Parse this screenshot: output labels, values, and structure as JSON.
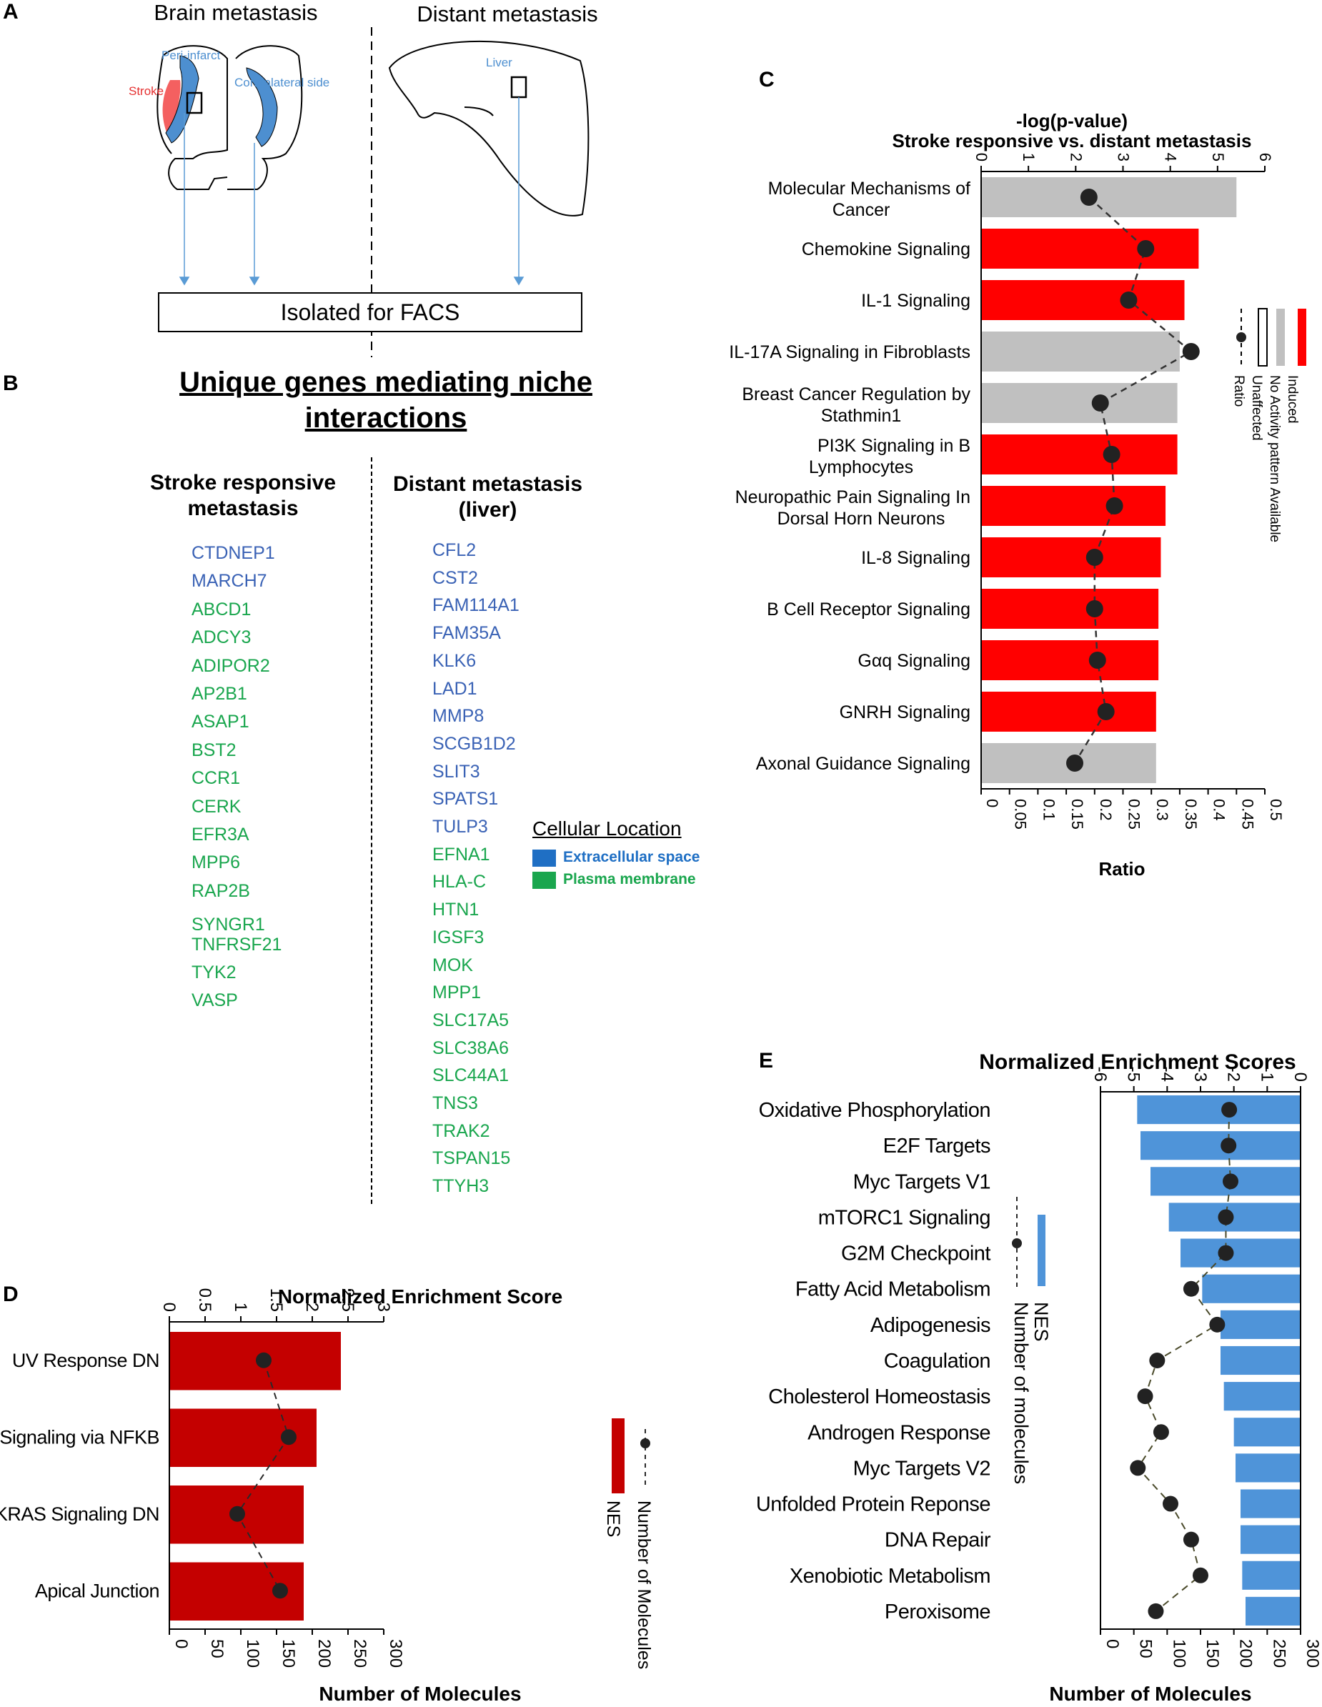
{
  "panels": {
    "A": "A",
    "B": "B",
    "C": "C",
    "D": "D",
    "E": "E"
  },
  "colors": {
    "extracellular": "#3a62b5",
    "plasma": "#1aa64e",
    "induced": "#ff0000",
    "noActivity": "#c0c0c0",
    "nesBlue": "#4f94d9",
    "nesRed": "#c40000",
    "region": "#4d8fd0",
    "stroke": "#f46060"
  },
  "panelA": {
    "brain_title": "Brain metastasis",
    "distant_title": "Distant metastasis",
    "peri_infarct": "Peri-infarct",
    "stroke": "Stroke",
    "contralateral": "Contralateral side",
    "liver": "Liver",
    "facs": "Isolated for FACS"
  },
  "panelB": {
    "title_line1": "Unique genes mediating niche",
    "title_line2": "interactions",
    "col1_line1": "Stroke responsive",
    "col1_line2": "metastasis",
    "col2_line1": "Distant metastasis",
    "col2_line2": "(liver)",
    "legend_title": "Cellular  Location",
    "legend_extracellular": "Extracellular space",
    "legend_plasma": "Plasma membrane",
    "stroke_genes": [
      {
        "name": "CTDNEP1",
        "loc": "extracellular"
      },
      {
        "name": "MARCH7",
        "loc": "extracellular"
      },
      {
        "name": "ABCD1",
        "loc": "plasma"
      },
      {
        "name": "ADCY3",
        "loc": "plasma"
      },
      {
        "name": "ADIPOR2",
        "loc": "plasma"
      },
      {
        "name": "AP2B1",
        "loc": "plasma"
      },
      {
        "name": "ASAP1",
        "loc": "plasma"
      },
      {
        "name": "BST2",
        "loc": "plasma"
      },
      {
        "name": "CCR1",
        "loc": "plasma"
      },
      {
        "name": "CERK",
        "loc": "plasma"
      },
      {
        "name": "EFR3A",
        "loc": "plasma"
      },
      {
        "name": "MPP6",
        "loc": "plasma"
      },
      {
        "name": "RAP2B",
        "loc": "plasma"
      },
      {
        "name": "SYNGR1",
        "loc": "plasma"
      },
      {
        "name": "TNFRSF21",
        "loc": "plasma"
      },
      {
        "name": "TYK2",
        "loc": "plasma"
      },
      {
        "name": "VASP",
        "loc": "plasma"
      }
    ],
    "liver_genes": [
      {
        "name": "CFL2",
        "loc": "extracellular"
      },
      {
        "name": "CST2",
        "loc": "extracellular"
      },
      {
        "name": "FAM114A1",
        "loc": "extracellular"
      },
      {
        "name": "FAM35A",
        "loc": "extracellular"
      },
      {
        "name": "KLK6",
        "loc": "extracellular"
      },
      {
        "name": "LAD1",
        "loc": "extracellular"
      },
      {
        "name": "MMP8",
        "loc": "extracellular"
      },
      {
        "name": "SCGB1D2",
        "loc": "extracellular"
      },
      {
        "name": "SLIT3",
        "loc": "extracellular"
      },
      {
        "name": "SPATS1",
        "loc": "extracellular"
      },
      {
        "name": "TULP3",
        "loc": "extracellular"
      },
      {
        "name": "EFNA1",
        "loc": "plasma"
      },
      {
        "name": "HLA-C",
        "loc": "plasma"
      },
      {
        "name": "HTN1",
        "loc": "plasma"
      },
      {
        "name": "IGSF3",
        "loc": "plasma"
      },
      {
        "name": "MOK",
        "loc": "plasma"
      },
      {
        "name": "MPP1",
        "loc": "plasma"
      },
      {
        "name": "SLC17A5",
        "loc": "plasma"
      },
      {
        "name": "SLC38A6",
        "loc": "plasma"
      },
      {
        "name": "SLC44A1",
        "loc": "plasma"
      },
      {
        "name": "TNS3",
        "loc": "plasma"
      },
      {
        "name": "TRAK2",
        "loc": "plasma"
      },
      {
        "name": "TSPAN15",
        "loc": "plasma"
      },
      {
        "name": "TTYH3",
        "loc": "plasma"
      }
    ]
  },
  "chart_data": [
    {
      "id": "C",
      "type": "bar",
      "title_line1": "-log(p-value)",
      "title_line2": "Stroke responsive vs. distant metastasis",
      "xlabel": "Ratio",
      "top_ticks": [
        "0",
        "1",
        "2",
        "3",
        "4",
        "5",
        "6"
      ],
      "bottom_ticks": [
        "0",
        "0.05",
        "0.1",
        "0.15",
        "0.2",
        "0.25",
        "0.3",
        "0.35",
        "0.4",
        "0.45",
        "0.5"
      ],
      "xlim_top": [
        0,
        6
      ],
      "xlim_bottom": [
        0,
        0.5
      ],
      "categories": [
        {
          "l1": "Molecular Mechanisms of",
          "l2": "Cancer"
        },
        {
          "l1": "Chemokine Signaling",
          "l2": ""
        },
        {
          "l1": "IL-1 Signaling",
          "l2": ""
        },
        {
          "l1": "IL-17A Signaling in Fibroblasts",
          "l2": ""
        },
        {
          "l1": "Breast Cancer Regulation by",
          "l2": "Stathmin1"
        },
        {
          "l1": "PI3K Signaling in B",
          "l2": "Lymphocytes"
        },
        {
          "l1": "Neuropathic Pain Signaling In",
          "l2": "Dorsal Horn Neurons"
        },
        {
          "l1": "IL-8 Signaling",
          "l2": ""
        },
        {
          "l1": "B Cell Receptor Signaling",
          "l2": ""
        },
        {
          "l1": "Gαq Signaling",
          "l2": ""
        },
        {
          "l1": "GNRH Signaling",
          "l2": ""
        },
        {
          "l1": "Axonal Guidance Signaling",
          "l2": ""
        }
      ],
      "values": [
        5.4,
        4.6,
        4.3,
        4.2,
        4.15,
        4.15,
        3.9,
        3.8,
        3.75,
        3.75,
        3.7,
        3.7
      ],
      "pattern": [
        "noActivity",
        "induced",
        "induced",
        "noActivity",
        "noActivity",
        "induced",
        "induced",
        "induced",
        "induced",
        "induced",
        "induced",
        "noActivity"
      ],
      "ratio": [
        0.19,
        0.29,
        0.26,
        0.37,
        0.21,
        0.23,
        0.235,
        0.2,
        0.2,
        0.205,
        0.22,
        0.165
      ],
      "legend": [
        "Induced",
        "No Activity pattern Available",
        "Unaffected",
        "Ratio"
      ]
    },
    {
      "id": "D",
      "type": "bar",
      "title": "Normalized Enrichment Score",
      "xlabel": "Number of Molecules",
      "top_ticks": [
        "0",
        "0.5",
        "1",
        "1.5",
        "2",
        "2.5",
        "3"
      ],
      "bottom_ticks": [
        "0",
        "50",
        "100",
        "150",
        "200",
        "250",
        "300"
      ],
      "xlim_top": [
        0,
        3
      ],
      "xlim_bottom": [
        0,
        300
      ],
      "categories": [
        "UV Response DN",
        "TNFA Signaling via NFKB",
        "KRAS Signaling DN",
        "Apical Junction"
      ],
      "values": [
        2.4,
        2.06,
        1.88,
        1.88
      ],
      "molecules": [
        132,
        167,
        95,
        155
      ],
      "legend": [
        "Number of Molecules",
        "NES"
      ]
    },
    {
      "id": "E",
      "type": "bar",
      "title": "Normalized Enrichment Scores",
      "xlabel": "Number of Molecules",
      "top_ticks": [
        "-6",
        "-5",
        "-4",
        "-3",
        "-2",
        "-1",
        "0"
      ],
      "bottom_ticks": [
        "0",
        "50",
        "100",
        "150",
        "200",
        "250",
        "300"
      ],
      "xlim_top": [
        -6,
        0
      ],
      "xlim_bottom": [
        0,
        300
      ],
      "categories": [
        "Oxidative Phosphorylation",
        "E2F Targets",
        "Myc Targets V1",
        "mTORC1 Signaling",
        "G2M Checkpoint",
        "Fatty Acid Metabolism",
        "Adipogenesis",
        "Coagulation",
        "Cholesterol Homeostasis",
        "Androgen Response",
        "Myc Targets V2",
        "Unfolded Protein Reponse",
        "DNA Repair",
        "Xenobiotic Metabolism",
        "Peroxisome"
      ],
      "values": [
        -4.9,
        -4.8,
        -4.5,
        -3.95,
        -3.6,
        -2.95,
        -2.4,
        -2.4,
        -2.3,
        -2.0,
        -1.95,
        -1.8,
        -1.8,
        -1.75,
        -1.65
      ],
      "molecules": [
        193,
        192,
        195,
        188,
        188,
        136,
        175,
        85,
        67,
        91,
        56,
        105,
        136,
        150,
        83
      ],
      "legend": [
        "NES",
        "Number of molecules"
      ]
    }
  ]
}
